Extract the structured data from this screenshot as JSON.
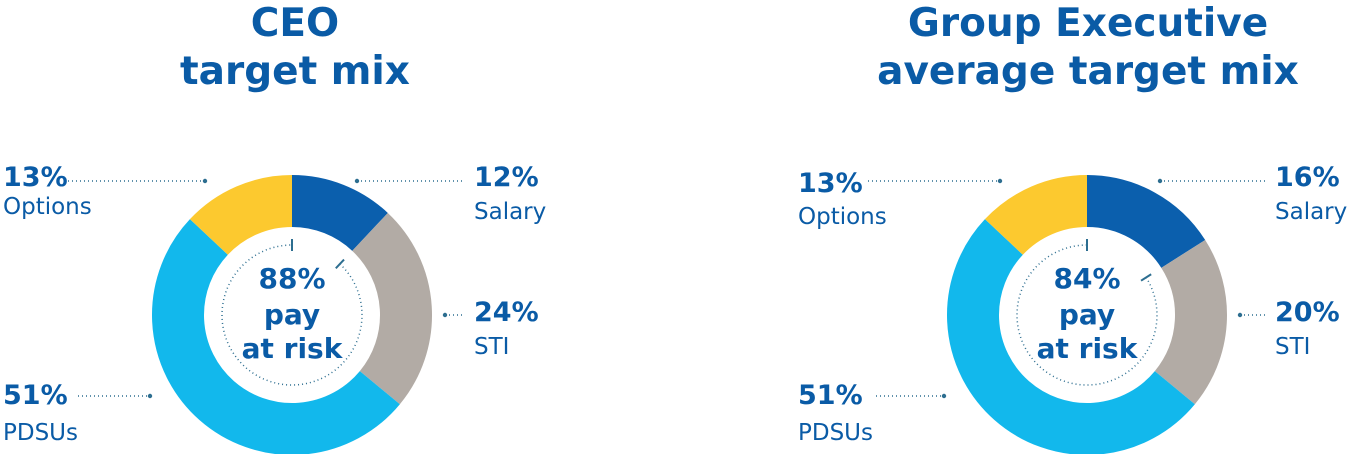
{
  "colors": {
    "text": "#0a5ba6",
    "salary": "#0b5fad",
    "sti": "#b2aba5",
    "pdsus": "#12b8ec",
    "options": "#fcc92f",
    "leader": "#2d6e90"
  },
  "chart_data": [
    {
      "type": "pie",
      "title_lines": [
        "CEO",
        "target mix"
      ],
      "center_lines": [
        "88%",
        "pay",
        "at risk"
      ],
      "slices": [
        {
          "key": "salary",
          "label": "Salary",
          "value_label": "12%",
          "value": 12
        },
        {
          "key": "sti",
          "label": "STI",
          "value_label": "24%",
          "value": 24
        },
        {
          "key": "pdsus",
          "label": "PDSUs",
          "value_label": "51%",
          "value": 51
        },
        {
          "key": "options",
          "label": "Options",
          "value_label": "13%",
          "value": 13
        }
      ]
    },
    {
      "type": "pie",
      "title_lines": [
        "Group Executive",
        "average target mix"
      ],
      "center_lines": [
        "84%",
        "pay",
        "at risk"
      ],
      "slices": [
        {
          "key": "salary",
          "label": "Salary",
          "value_label": "16%",
          "value": 16
        },
        {
          "key": "sti",
          "label": "STI",
          "value_label": "20%",
          "value": 20
        },
        {
          "key": "pdsus",
          "label": "PDSUs",
          "value_label": "51%",
          "value": 51
        },
        {
          "key": "options",
          "label": "Options",
          "value_label": "13%",
          "value": 13
        }
      ]
    }
  ]
}
